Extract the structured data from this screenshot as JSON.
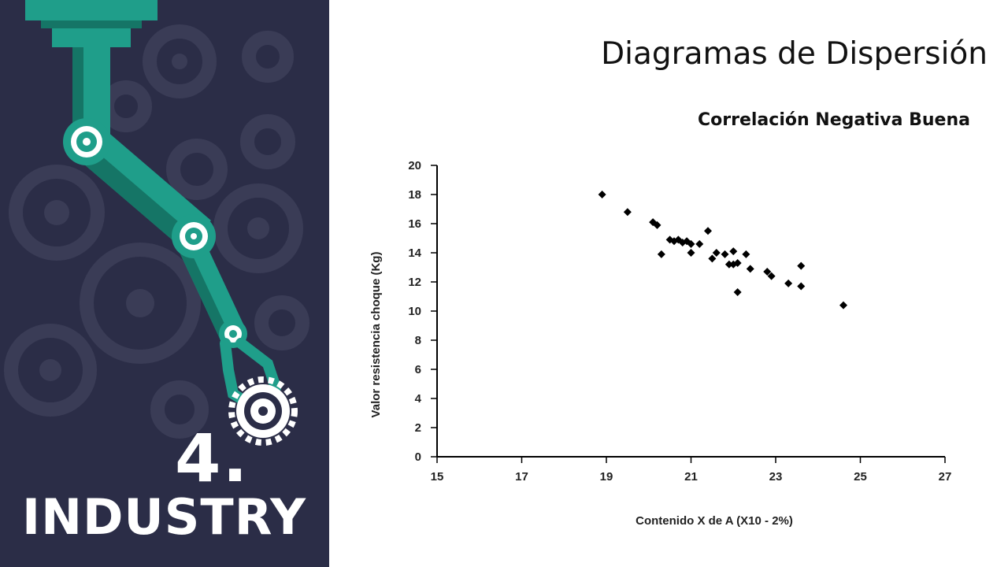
{
  "branding": {
    "number": "4.",
    "word": "INDUSTRY"
  },
  "slide": {
    "title": "Diagramas de Dispersión",
    "subtitle": "Correlación Negativa Buena"
  },
  "colors": {
    "panel": "#2b2d47",
    "gear": "#3a3c56",
    "arm": "#1f9e8a",
    "arm_dark": "#157566",
    "points": "#000000"
  },
  "chart_data": {
    "type": "scatter",
    "title": "",
    "xlabel": "Contenido X de A (X10 - 2%)",
    "ylabel": "Valor resistencia choque (Kg)",
    "xlim": [
      15,
      27
    ],
    "ylim": [
      0,
      20
    ],
    "xticks": [
      15,
      17,
      19,
      21,
      23,
      25,
      27
    ],
    "yticks": [
      0,
      2,
      4,
      6,
      8,
      10,
      12,
      14,
      16,
      18,
      20
    ],
    "grid": false,
    "points": [
      {
        "x": 18.9,
        "y": 18.0
      },
      {
        "x": 19.5,
        "y": 16.8
      },
      {
        "x": 20.1,
        "y": 16.1
      },
      {
        "x": 20.2,
        "y": 15.9
      },
      {
        "x": 20.5,
        "y": 14.9
      },
      {
        "x": 20.6,
        "y": 14.8
      },
      {
        "x": 20.7,
        "y": 14.9
      },
      {
        "x": 20.8,
        "y": 14.7
      },
      {
        "x": 20.9,
        "y": 14.8
      },
      {
        "x": 21.0,
        "y": 14.6
      },
      {
        "x": 21.0,
        "y": 14.0
      },
      {
        "x": 21.2,
        "y": 14.6
      },
      {
        "x": 21.4,
        "y": 15.5
      },
      {
        "x": 21.5,
        "y": 13.6
      },
      {
        "x": 21.6,
        "y": 14.0
      },
      {
        "x": 21.8,
        "y": 13.9
      },
      {
        "x": 21.9,
        "y": 13.2
      },
      {
        "x": 22.0,
        "y": 14.1
      },
      {
        "x": 22.0,
        "y": 13.2
      },
      {
        "x": 22.1,
        "y": 13.3
      },
      {
        "x": 22.3,
        "y": 13.9
      },
      {
        "x": 22.4,
        "y": 12.9
      },
      {
        "x": 20.3,
        "y": 13.9
      },
      {
        "x": 22.1,
        "y": 11.3
      },
      {
        "x": 22.8,
        "y": 12.7
      },
      {
        "x": 22.9,
        "y": 12.4
      },
      {
        "x": 23.3,
        "y": 11.9
      },
      {
        "x": 23.6,
        "y": 13.1
      },
      {
        "x": 23.6,
        "y": 11.7
      },
      {
        "x": 24.6,
        "y": 10.4
      }
    ]
  }
}
